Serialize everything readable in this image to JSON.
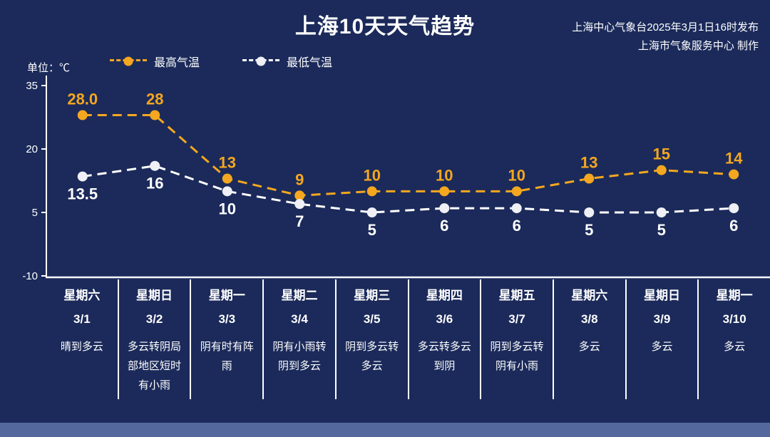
{
  "header": {
    "title": "上海10天天气趋势",
    "source_line1": "上海中心气象台2025年3月1日16时发布",
    "source_line2": "上海市气象服务中心 制作"
  },
  "legend": {
    "unit": "单位：℃",
    "max_label": "最高气温",
    "min_label": "最低气温"
  },
  "colors": {
    "background": "#1b2a5a",
    "max_temp": "#f4a71f",
    "min_temp": "#ffffff",
    "footer_bar": "#55689d"
  },
  "chart_data": {
    "type": "line",
    "title": "上海10天天气趋势",
    "unit": "℃",
    "grid": false,
    "legend_position": "top",
    "ylim": [
      -10,
      35
    ],
    "yticks": [
      35,
      20,
      5,
      -10
    ],
    "categories": [
      "3/1",
      "3/2",
      "3/3",
      "3/4",
      "3/5",
      "3/6",
      "3/7",
      "3/8",
      "3/9",
      "3/10"
    ],
    "weekdays": [
      "星期六",
      "星期日",
      "星期一",
      "星期二",
      "星期三",
      "星期四",
      "星期五",
      "星期六",
      "星期日",
      "星期一"
    ],
    "weather": [
      "晴到多云",
      "多云转阴局部地区短时有小雨",
      "阴有时有阵雨",
      "阴有小雨转阴到多云",
      "阴到多云转多云",
      "多云转多云到阴",
      "阴到多云转阴有小雨",
      "多云",
      "多云",
      "多云"
    ],
    "series": [
      {
        "name": "最高气温",
        "color": "#f4a71f",
        "dot_color": "#f4a71f",
        "label_position": "above",
        "values": [
          28.0,
          28,
          13,
          9,
          10,
          10,
          10,
          13,
          15,
          14
        ],
        "labels": [
          "28.0",
          "28",
          "13",
          "9",
          "10",
          "10",
          "10",
          "13",
          "15",
          "14"
        ]
      },
      {
        "name": "最低气温",
        "color": "#ffffff",
        "dot_color": "#eef0f6",
        "label_position": "below",
        "values": [
          13.5,
          16,
          10,
          7,
          5,
          6,
          6,
          5,
          5,
          6
        ],
        "labels": [
          "13.5",
          "16",
          "10",
          "7",
          "5",
          "6",
          "6",
          "5",
          "5",
          "6"
        ]
      }
    ]
  }
}
